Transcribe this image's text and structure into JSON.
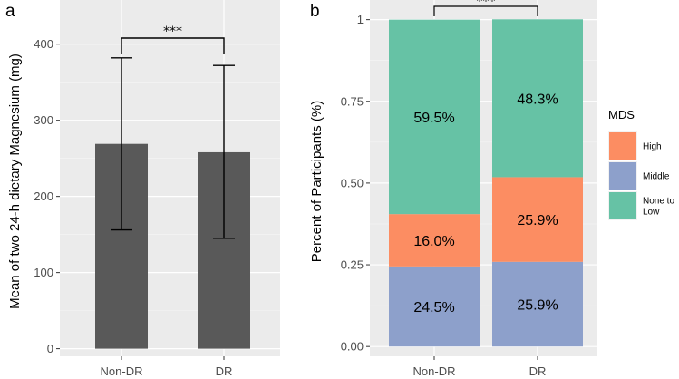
{
  "chart_data": [
    {
      "panel": "a",
      "type": "bar",
      "title": "",
      "xlabel": "",
      "ylabel": "Mean of  two 24-h dietary Magnesium (mg)",
      "categories": [
        "Non-DR",
        "DR"
      ],
      "values": [
        269,
        258
      ],
      "error_low": [
        156,
        145
      ],
      "error_high": [
        382,
        372
      ],
      "ylim": [
        -10,
        458
      ],
      "yticks": [
        0,
        100,
        200,
        300,
        400
      ],
      "ytick_labels": [
        "0",
        "100",
        "200",
        "300",
        "400"
      ],
      "significance": "***",
      "grid": true,
      "bar_color": "#595959",
      "panel_bg": "#ebebeb"
    },
    {
      "panel": "b",
      "type": "bar",
      "stacked": true,
      "title": "",
      "xlabel": "",
      "ylabel": "Percent of Participants (%)",
      "categories": [
        "Non-DR",
        "DR"
      ],
      "series": [
        {
          "name": "Middle",
          "values": [
            0.245,
            0.259
          ],
          "labels": [
            "24.5%",
            "25.9%"
          ],
          "color": "#8da0cb"
        },
        {
          "name": "High",
          "values": [
            0.16,
            0.259
          ],
          "labels": [
            "16.0%",
            "25.9%"
          ],
          "color": "#fc8d62"
        },
        {
          "name": "None to Low",
          "values": [
            0.595,
            0.483
          ],
          "labels": [
            "59.5%",
            "48.3%"
          ],
          "color": "#66c2a5"
        }
      ],
      "ylim": [
        -0.03,
        1.06
      ],
      "yticks": [
        0,
        0.25,
        0.5,
        0.75,
        1
      ],
      "ytick_labels": [
        "0.00",
        "0.25",
        "0.50",
        "0.75",
        "1"
      ],
      "significance": "***",
      "grid": true,
      "panel_bg": "#ebebeb",
      "legend": {
        "title": "MDS",
        "placement": "right",
        "entries": [
          {
            "series": "High",
            "lines": [
              "High"
            ]
          },
          {
            "series": "Middle",
            "lines": [
              "Middle"
            ]
          },
          {
            "series": "None to Low",
            "lines": [
              "None to",
              "Low"
            ]
          }
        ]
      }
    }
  ]
}
